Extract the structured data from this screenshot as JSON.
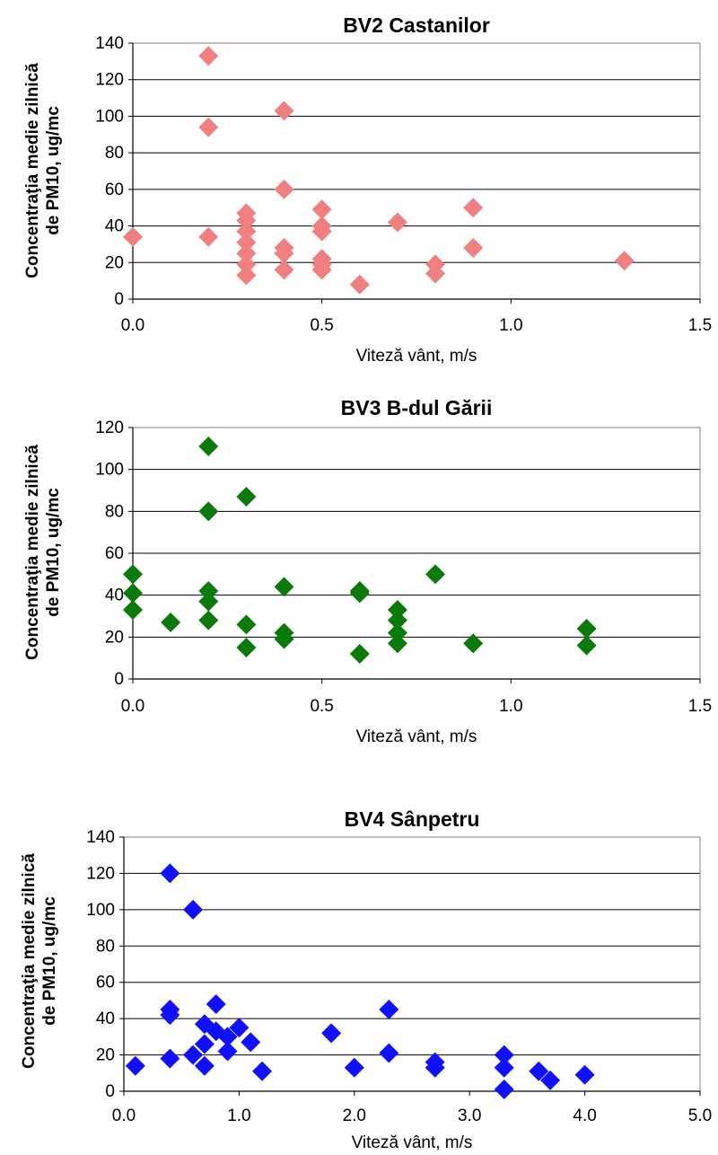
{
  "chart_data": [
    {
      "type": "scatter",
      "title": "BV2 Castanilor",
      "xlabel": "Viteză vânt,  m/s",
      "ylabel_lines": [
        "Concentraţia medie zilnică",
        "de PM10, ug/mc"
      ],
      "xlim": [
        0,
        1.5
      ],
      "ylim": [
        0,
        140
      ],
      "xticks": [
        0,
        0.5,
        1.0,
        1.5
      ],
      "xtick_labels": [
        "0.0",
        "0.5",
        "1.0",
        "1.5"
      ],
      "yticks": [
        0,
        20,
        40,
        60,
        80,
        100,
        120,
        140
      ],
      "grid": true,
      "marker": "diamond",
      "color": "#f08080",
      "points": [
        [
          0.0,
          34
        ],
        [
          0.2,
          133
        ],
        [
          0.2,
          94
        ],
        [
          0.2,
          34
        ],
        [
          0.3,
          47
        ],
        [
          0.3,
          43
        ],
        [
          0.3,
          37
        ],
        [
          0.3,
          31
        ],
        [
          0.3,
          25
        ],
        [
          0.3,
          19
        ],
        [
          0.3,
          13
        ],
        [
          0.4,
          103
        ],
        [
          0.4,
          60
        ],
        [
          0.4,
          28
        ],
        [
          0.4,
          25
        ],
        [
          0.4,
          16
        ],
        [
          0.5,
          49
        ],
        [
          0.5,
          40
        ],
        [
          0.5,
          37
        ],
        [
          0.5,
          22
        ],
        [
          0.5,
          19
        ],
        [
          0.5,
          16
        ],
        [
          0.6,
          8
        ],
        [
          0.7,
          42
        ],
        [
          0.8,
          19
        ],
        [
          0.8,
          14
        ],
        [
          0.9,
          50
        ],
        [
          0.9,
          28
        ],
        [
          1.3,
          21
        ]
      ]
    },
    {
      "type": "scatter",
      "title": "BV3 B-dul Gării",
      "xlabel": "Viteză vânt,  m/s",
      "ylabel_lines": [
        "Concentraţia medie zilnică",
        "de PM10, ug/mc"
      ],
      "xlim": [
        0,
        1.5
      ],
      "ylim": [
        0,
        120
      ],
      "xticks": [
        0,
        0.5,
        1.0,
        1.5
      ],
      "xtick_labels": [
        "0.0",
        "0.5",
        "1.0",
        "1.5"
      ],
      "yticks": [
        0,
        20,
        40,
        60,
        80,
        100,
        120
      ],
      "grid": true,
      "marker": "diamond",
      "color": "#0a7a0a",
      "points": [
        [
          0.0,
          50
        ],
        [
          0.0,
          41
        ],
        [
          0.0,
          33
        ],
        [
          0.1,
          27
        ],
        [
          0.2,
          111
        ],
        [
          0.2,
          80
        ],
        [
          0.2,
          42
        ],
        [
          0.2,
          37
        ],
        [
          0.2,
          28
        ],
        [
          0.3,
          87
        ],
        [
          0.3,
          26
        ],
        [
          0.3,
          15
        ],
        [
          0.4,
          44
        ],
        [
          0.4,
          22
        ],
        [
          0.4,
          19
        ],
        [
          0.6,
          42
        ],
        [
          0.6,
          41
        ],
        [
          0.6,
          12
        ],
        [
          0.7,
          33
        ],
        [
          0.7,
          28
        ],
        [
          0.7,
          22
        ],
        [
          0.7,
          17
        ],
        [
          0.8,
          50
        ],
        [
          0.9,
          17
        ],
        [
          1.2,
          24
        ],
        [
          1.2,
          16
        ]
      ]
    },
    {
      "type": "scatter",
      "title": "BV4 Sânpetru",
      "xlabel": "Viteză vânt,  m/s",
      "ylabel_lines": [
        "Concentraţia medie zilnică",
        "de PM10, ug/mc"
      ],
      "xlim": [
        0,
        5.0
      ],
      "ylim": [
        0,
        140
      ],
      "xticks": [
        0,
        1,
        2,
        3,
        4,
        5
      ],
      "xtick_labels": [
        "0.0",
        "1.0",
        "2.0",
        "3.0",
        "4.0",
        "5.0"
      ],
      "yticks": [
        0,
        20,
        40,
        60,
        80,
        100,
        120,
        140
      ],
      "grid": true,
      "marker": "diamond",
      "color": "#1010ff",
      "points": [
        [
          0.1,
          14
        ],
        [
          0.4,
          120
        ],
        [
          0.4,
          45
        ],
        [
          0.4,
          42
        ],
        [
          0.4,
          18
        ],
        [
          0.6,
          100
        ],
        [
          0.6,
          20
        ],
        [
          0.7,
          37
        ],
        [
          0.7,
          26
        ],
        [
          0.7,
          14
        ],
        [
          0.8,
          48
        ],
        [
          0.8,
          33
        ],
        [
          0.9,
          30
        ],
        [
          0.9,
          22
        ],
        [
          1.0,
          35
        ],
        [
          1.1,
          27
        ],
        [
          1.2,
          11
        ],
        [
          1.8,
          32
        ],
        [
          2.0,
          13
        ],
        [
          2.3,
          45
        ],
        [
          2.3,
          21
        ],
        [
          2.7,
          16
        ],
        [
          2.7,
          13
        ],
        [
          3.3,
          20
        ],
        [
          3.3,
          13
        ],
        [
          3.3,
          1
        ],
        [
          3.6,
          11
        ],
        [
          3.7,
          6
        ],
        [
          4.0,
          9
        ]
      ]
    }
  ]
}
